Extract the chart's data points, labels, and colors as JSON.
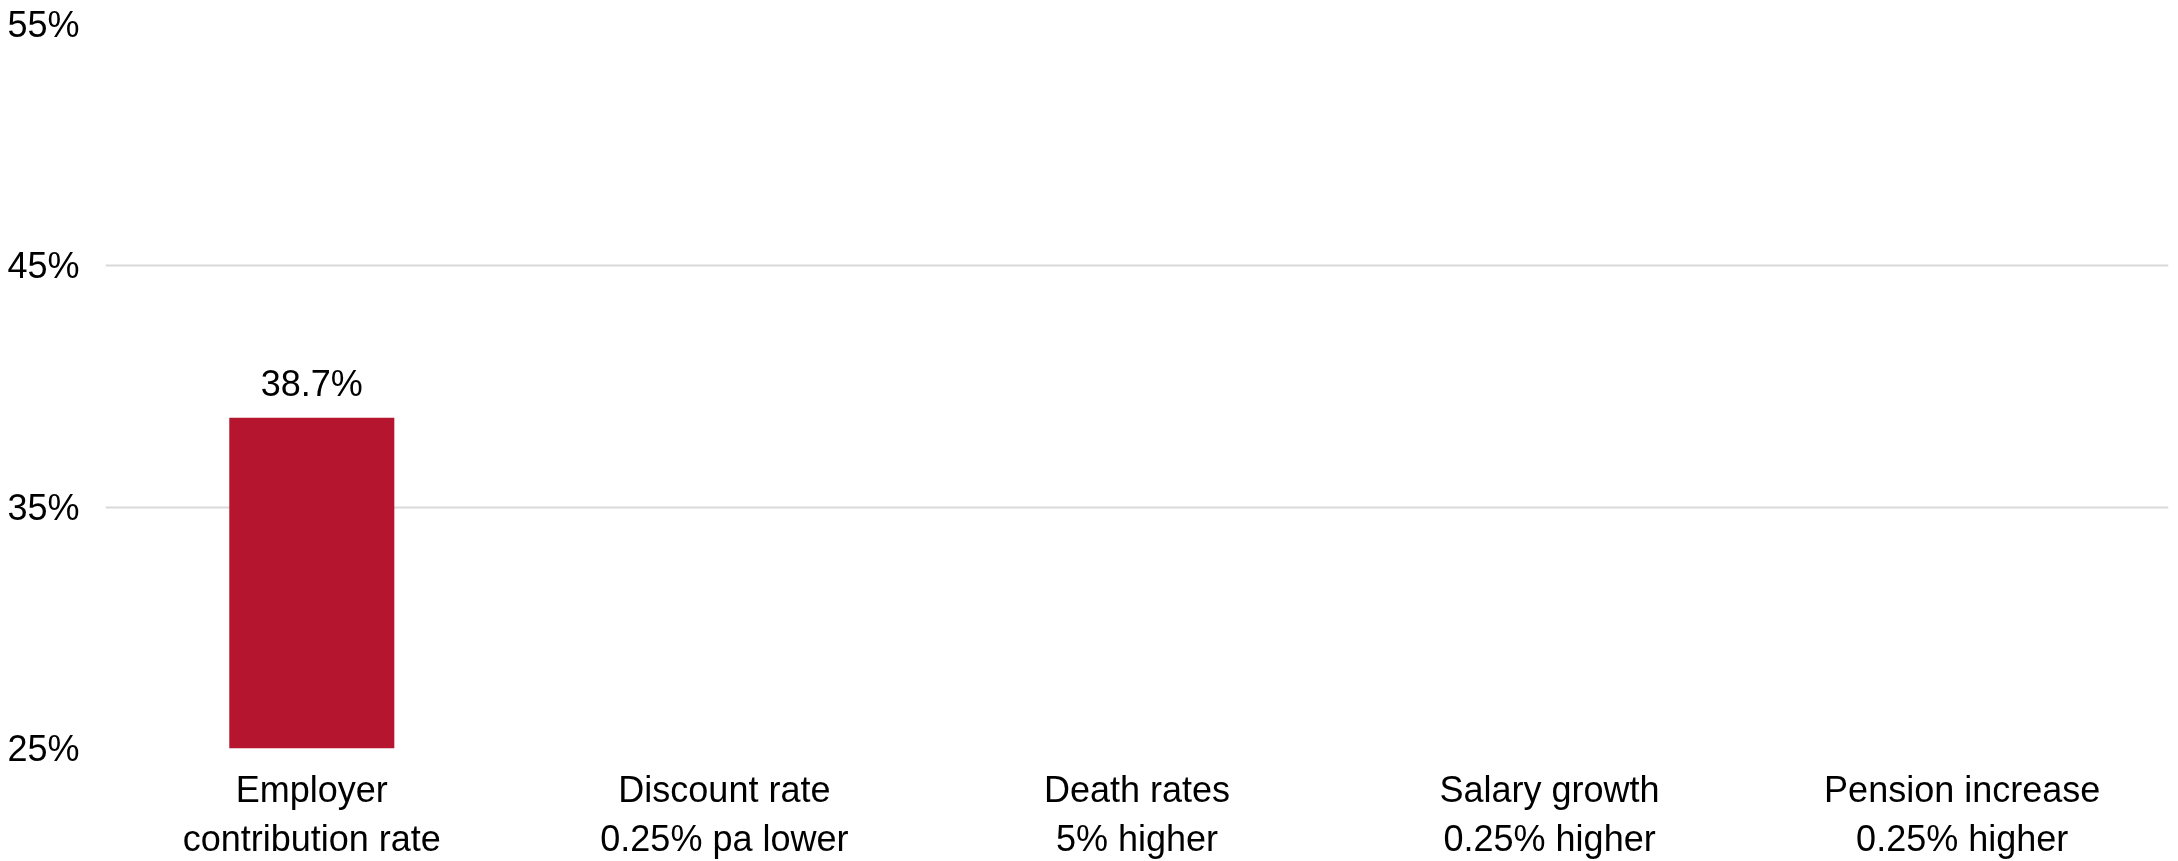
{
  "chart_data": {
    "type": "bar",
    "categories": [
      "Employer\ncontribution rate",
      "Discount rate\n0.25% pa lower",
      "Death rates\n5% higher",
      "Salary growth\n0.25% higher",
      "Pension increase\n0.25% higher"
    ],
    "values": [
      38.7,
      null,
      null,
      null,
      null
    ],
    "color": "#b5152f",
    "ylim": [
      25,
      55
    ],
    "yticks": [
      {
        "value": 25,
        "label": "25%"
      },
      {
        "value": 35,
        "label": "35%"
      },
      {
        "value": 45,
        "label": "45%"
      },
      {
        "value": 55,
        "label": "55%"
      }
    ],
    "grid": "y",
    "value_labels": [
      "38.7%",
      null,
      null,
      null,
      null
    ]
  }
}
